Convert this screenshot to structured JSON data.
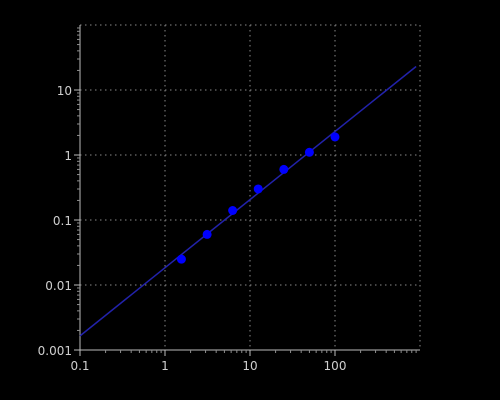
{
  "chart_data": {
    "type": "scatter",
    "title": "",
    "xlabel": "",
    "ylabel": "",
    "x_scale": "log",
    "y_scale": "log",
    "xlim": [
      0.1,
      1000
    ],
    "ylim": [
      0.001,
      100
    ],
    "x_ticks": [
      0.1,
      1,
      10,
      100
    ],
    "x_tick_labels": [
      "0.1",
      "1",
      "10",
      "100"
    ],
    "y_ticks": [
      0.001,
      0.01,
      0.1,
      1,
      10
    ],
    "y_tick_labels": [
      "0.001",
      "0.01",
      "0.1",
      "1",
      "10"
    ],
    "grid": true,
    "points": {
      "x": [
        1.56,
        3.13,
        6.25,
        12.5,
        25,
        50,
        100
      ],
      "y": [
        0.025,
        0.06,
        0.14,
        0.3,
        0.6,
        1.1,
        1.9
      ]
    },
    "fit_line": {
      "x": [
        0.1,
        900
      ],
      "y": [
        0.00165,
        23
      ]
    },
    "colors": {
      "background": "#000000",
      "points": "#0000ff",
      "fit_line": "#2222aa",
      "grid": "#8a8a8a",
      "tick_label": "#cfcfcf"
    }
  }
}
